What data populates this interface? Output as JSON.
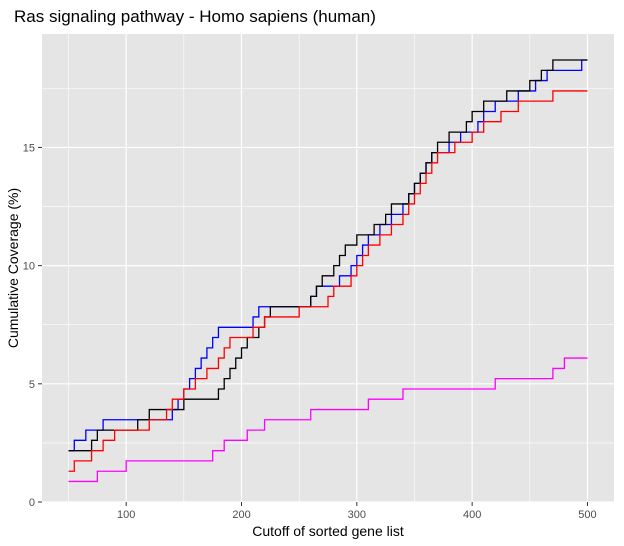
{
  "chart_data": {
    "type": "line",
    "title": "Ras signaling pathway - Homo sapiens (human)",
    "xlabel": "Cutoff of sorted gene list",
    "ylabel": "Cumulative Coverage (%)",
    "xlim": [
      27,
      523
    ],
    "ylim": [
      0,
      19.8
    ],
    "xticks": [
      100,
      200,
      300,
      400,
      500
    ],
    "yticks": [
      0,
      5,
      10,
      15
    ],
    "grid": true,
    "legend": "none",
    "panel_background": "#e5e5e5",
    "grid_color": "#ffffff",
    "series": [
      {
        "color": "#0000ff",
        "points": [
          [
            50,
            2.17
          ],
          [
            55,
            2.61
          ],
          [
            65,
            3.04
          ],
          [
            80,
            3.48
          ],
          [
            140,
            3.91
          ],
          [
            145,
            4.35
          ],
          [
            150,
            4.78
          ],
          [
            155,
            5.22
          ],
          [
            160,
            5.65
          ],
          [
            165,
            6.09
          ],
          [
            170,
            6.52
          ],
          [
            175,
            6.96
          ],
          [
            180,
            7.39
          ],
          [
            210,
            7.83
          ],
          [
            215,
            8.26
          ],
          [
            260,
            8.7
          ],
          [
            265,
            9.13
          ],
          [
            285,
            9.57
          ],
          [
            295,
            10.0
          ],
          [
            300,
            10.43
          ],
          [
            305,
            10.87
          ],
          [
            310,
            11.3
          ],
          [
            320,
            11.74
          ],
          [
            330,
            12.17
          ],
          [
            340,
            12.61
          ],
          [
            345,
            13.04
          ],
          [
            350,
            13.48
          ],
          [
            355,
            13.91
          ],
          [
            360,
            14.35
          ],
          [
            365,
            14.78
          ],
          [
            380,
            15.22
          ],
          [
            390,
            15.65
          ],
          [
            405,
            16.09
          ],
          [
            410,
            16.52
          ],
          [
            420,
            16.96
          ],
          [
            440,
            17.39
          ],
          [
            455,
            17.83
          ],
          [
            465,
            18.26
          ],
          [
            495,
            18.7
          ],
          [
            500,
            18.7
          ]
        ]
      },
      {
        "color": "#000000",
        "points": [
          [
            50,
            2.17
          ],
          [
            70,
            2.61
          ],
          [
            75,
            3.04
          ],
          [
            110,
            3.48
          ],
          [
            120,
            3.91
          ],
          [
            150,
            4.35
          ],
          [
            180,
            4.78
          ],
          [
            185,
            5.22
          ],
          [
            190,
            5.65
          ],
          [
            195,
            6.09
          ],
          [
            200,
            6.52
          ],
          [
            205,
            6.96
          ],
          [
            215,
            7.39
          ],
          [
            220,
            7.83
          ],
          [
            225,
            8.26
          ],
          [
            260,
            8.7
          ],
          [
            265,
            9.13
          ],
          [
            270,
            9.57
          ],
          [
            280,
            10.0
          ],
          [
            285,
            10.43
          ],
          [
            290,
            10.87
          ],
          [
            300,
            11.3
          ],
          [
            315,
            11.74
          ],
          [
            325,
            12.17
          ],
          [
            330,
            12.61
          ],
          [
            345,
            13.04
          ],
          [
            350,
            13.48
          ],
          [
            355,
            13.91
          ],
          [
            360,
            14.35
          ],
          [
            365,
            14.78
          ],
          [
            370,
            15.22
          ],
          [
            380,
            15.65
          ],
          [
            395,
            16.09
          ],
          [
            400,
            16.52
          ],
          [
            410,
            16.96
          ],
          [
            430,
            17.39
          ],
          [
            450,
            17.83
          ],
          [
            460,
            18.26
          ],
          [
            470,
            18.7
          ],
          [
            500,
            18.7
          ]
        ]
      },
      {
        "color": "#ff0000",
        "points": [
          [
            50,
            1.3
          ],
          [
            55,
            1.74
          ],
          [
            70,
            2.17
          ],
          [
            80,
            2.61
          ],
          [
            90,
            3.04
          ],
          [
            120,
            3.48
          ],
          [
            135,
            3.91
          ],
          [
            140,
            4.35
          ],
          [
            150,
            4.78
          ],
          [
            160,
            5.22
          ],
          [
            170,
            5.65
          ],
          [
            180,
            6.09
          ],
          [
            185,
            6.52
          ],
          [
            190,
            6.96
          ],
          [
            210,
            7.39
          ],
          [
            220,
            7.83
          ],
          [
            250,
            8.26
          ],
          [
            275,
            8.7
          ],
          [
            280,
            9.13
          ],
          [
            295,
            9.57
          ],
          [
            300,
            10.0
          ],
          [
            305,
            10.43
          ],
          [
            310,
            10.87
          ],
          [
            320,
            11.3
          ],
          [
            330,
            11.74
          ],
          [
            340,
            12.17
          ],
          [
            345,
            12.61
          ],
          [
            350,
            13.04
          ],
          [
            355,
            13.48
          ],
          [
            360,
            13.91
          ],
          [
            365,
            14.35
          ],
          [
            370,
            14.78
          ],
          [
            385,
            15.22
          ],
          [
            400,
            15.65
          ],
          [
            410,
            16.09
          ],
          [
            425,
            16.52
          ],
          [
            440,
            16.96
          ],
          [
            470,
            17.39
          ],
          [
            500,
            17.39
          ]
        ]
      },
      {
        "color": "#ff00ff",
        "points": [
          [
            50,
            0.87
          ],
          [
            75,
            1.3
          ],
          [
            100,
            1.74
          ],
          [
            175,
            2.17
          ],
          [
            185,
            2.61
          ],
          [
            205,
            3.04
          ],
          [
            220,
            3.48
          ],
          [
            260,
            3.91
          ],
          [
            310,
            4.35
          ],
          [
            340,
            4.78
          ],
          [
            420,
            5.22
          ],
          [
            470,
            5.65
          ],
          [
            480,
            6.09
          ],
          [
            500,
            6.09
          ]
        ]
      }
    ]
  }
}
